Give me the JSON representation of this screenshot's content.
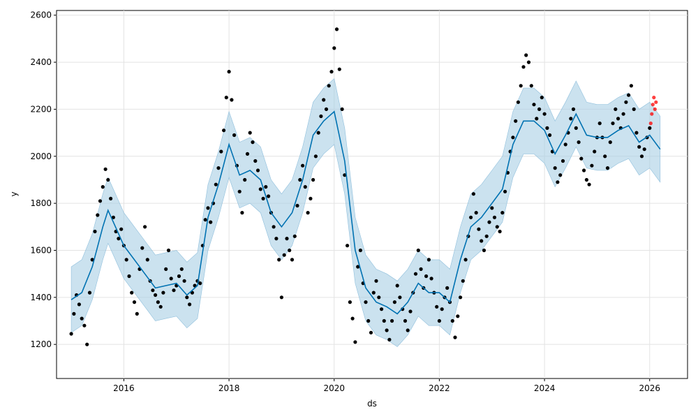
{
  "chart_data": {
    "type": "scatter",
    "xlabel": "ds",
    "ylabel": "y",
    "xlim": [
      2014.72,
      2026.72
    ],
    "ylim": [
      1055,
      2620
    ],
    "grid": true,
    "x_ticks": [
      2016,
      2018,
      2020,
      2022,
      2024,
      2026
    ],
    "y_ticks": [
      1200,
      1400,
      1600,
      1800,
      2000,
      2200,
      2400,
      2600
    ],
    "colors": {
      "observed": "#000000",
      "recent": "#ff0000",
      "forecast": "#0072b2",
      "band": "#a9cfe5"
    },
    "series": [
      {
        "role": "observed",
        "points": [
          [
            2015.0,
            1245
          ],
          [
            2015.05,
            1330
          ],
          [
            2015.1,
            1410
          ],
          [
            2015.15,
            1370
          ],
          [
            2015.2,
            1310
          ],
          [
            2015.25,
            1280
          ],
          [
            2015.3,
            1200
          ],
          [
            2015.35,
            1420
          ],
          [
            2015.4,
            1560
          ],
          [
            2015.45,
            1680
          ],
          [
            2015.5,
            1750
          ],
          [
            2015.55,
            1810
          ],
          [
            2015.6,
            1870
          ],
          [
            2015.65,
            1945
          ],
          [
            2015.7,
            1900
          ],
          [
            2015.75,
            1820
          ],
          [
            2015.8,
            1740
          ],
          [
            2015.85,
            1680
          ],
          [
            2015.9,
            1650
          ],
          [
            2015.95,
            1690
          ],
          [
            2016.0,
            1620
          ],
          [
            2016.05,
            1560
          ],
          [
            2016.1,
            1490
          ],
          [
            2016.15,
            1420
          ],
          [
            2016.2,
            1380
          ],
          [
            2016.25,
            1330
          ],
          [
            2016.3,
            1520
          ],
          [
            2016.35,
            1610
          ],
          [
            2016.4,
            1700
          ],
          [
            2016.45,
            1560
          ],
          [
            2016.5,
            1470
          ],
          [
            2016.55,
            1430
          ],
          [
            2016.6,
            1410
          ],
          [
            2016.65,
            1380
          ],
          [
            2016.7,
            1360
          ],
          [
            2016.75,
            1420
          ],
          [
            2016.8,
            1520
          ],
          [
            2016.85,
            1600
          ],
          [
            2016.9,
            1480
          ],
          [
            2016.95,
            1430
          ],
          [
            2017.0,
            1450
          ],
          [
            2017.05,
            1490
          ],
          [
            2017.1,
            1520
          ],
          [
            2017.15,
            1470
          ],
          [
            2017.2,
            1400
          ],
          [
            2017.25,
            1370
          ],
          [
            2017.3,
            1420
          ],
          [
            2017.35,
            1450
          ],
          [
            2017.4,
            1470
          ],
          [
            2017.45,
            1460
          ],
          [
            2017.5,
            1620
          ],
          [
            2017.55,
            1730
          ],
          [
            2017.6,
            1780
          ],
          [
            2017.65,
            1720
          ],
          [
            2017.7,
            1800
          ],
          [
            2017.75,
            1880
          ],
          [
            2017.8,
            1950
          ],
          [
            2017.85,
            2020
          ],
          [
            2017.9,
            2110
          ],
          [
            2017.95,
            2250
          ],
          [
            2018.0,
            2360
          ],
          [
            2018.05,
            2240
          ],
          [
            2018.1,
            2090
          ],
          [
            2018.15,
            1960
          ],
          [
            2018.2,
            1850
          ],
          [
            2018.25,
            1760
          ],
          [
            2018.3,
            1900
          ],
          [
            2018.35,
            2010
          ],
          [
            2018.4,
            2100
          ],
          [
            2018.45,
            2060
          ],
          [
            2018.5,
            1980
          ],
          [
            2018.55,
            1940
          ],
          [
            2018.6,
            1860
          ],
          [
            2018.65,
            1820
          ],
          [
            2018.7,
            1870
          ],
          [
            2018.75,
            1830
          ],
          [
            2018.8,
            1760
          ],
          [
            2018.85,
            1700
          ],
          [
            2018.9,
            1650
          ],
          [
            2018.95,
            1560
          ],
          [
            2019.0,
            1400
          ],
          [
            2019.05,
            1580
          ],
          [
            2019.1,
            1650
          ],
          [
            2019.15,
            1600
          ],
          [
            2019.2,
            1560
          ],
          [
            2019.25,
            1660
          ],
          [
            2019.3,
            1790
          ],
          [
            2019.35,
            1900
          ],
          [
            2019.4,
            1960
          ],
          [
            2019.45,
            1870
          ],
          [
            2019.5,
            1760
          ],
          [
            2019.55,
            1820
          ],
          [
            2019.6,
            1900
          ],
          [
            2019.65,
            2000
          ],
          [
            2019.7,
            2100
          ],
          [
            2019.75,
            2170
          ],
          [
            2019.8,
            2240
          ],
          [
            2019.85,
            2200
          ],
          [
            2019.9,
            2300
          ],
          [
            2019.95,
            2360
          ],
          [
            2020.0,
            2460
          ],
          [
            2020.05,
            2540
          ],
          [
            2020.1,
            2370
          ],
          [
            2020.15,
            2200
          ],
          [
            2020.2,
            1920
          ],
          [
            2020.25,
            1620
          ],
          [
            2020.3,
            1380
          ],
          [
            2020.35,
            1310
          ],
          [
            2020.4,
            1210
          ],
          [
            2020.45,
            1530
          ],
          [
            2020.5,
            1600
          ],
          [
            2020.55,
            1460
          ],
          [
            2020.6,
            1380
          ],
          [
            2020.65,
            1300
          ],
          [
            2020.7,
            1250
          ],
          [
            2020.75,
            1420
          ],
          [
            2020.8,
            1470
          ],
          [
            2020.85,
            1400
          ],
          [
            2020.9,
            1350
          ],
          [
            2020.95,
            1300
          ],
          [
            2021.0,
            1260
          ],
          [
            2021.05,
            1220
          ],
          [
            2021.1,
            1300
          ],
          [
            2021.15,
            1380
          ],
          [
            2021.2,
            1450
          ],
          [
            2021.25,
            1400
          ],
          [
            2021.3,
            1350
          ],
          [
            2021.35,
            1300
          ],
          [
            2021.4,
            1260
          ],
          [
            2021.45,
            1340
          ],
          [
            2021.5,
            1420
          ],
          [
            2021.55,
            1500
          ],
          [
            2021.6,
            1600
          ],
          [
            2021.65,
            1520
          ],
          [
            2021.7,
            1440
          ],
          [
            2021.75,
            1490
          ],
          [
            2021.8,
            1560
          ],
          [
            2021.85,
            1480
          ],
          [
            2021.9,
            1420
          ],
          [
            2021.95,
            1360
          ],
          [
            2022.0,
            1300
          ],
          [
            2022.05,
            1350
          ],
          [
            2022.1,
            1400
          ],
          [
            2022.15,
            1440
          ],
          [
            2022.2,
            1380
          ],
          [
            2022.25,
            1300
          ],
          [
            2022.3,
            1230
          ],
          [
            2022.35,
            1320
          ],
          [
            2022.4,
            1400
          ],
          [
            2022.45,
            1470
          ],
          [
            2022.5,
            1560
          ],
          [
            2022.55,
            1660
          ],
          [
            2022.6,
            1740
          ],
          [
            2022.65,
            1840
          ],
          [
            2022.7,
            1760
          ],
          [
            2022.75,
            1690
          ],
          [
            2022.8,
            1640
          ],
          [
            2022.85,
            1600
          ],
          [
            2022.9,
            1660
          ],
          [
            2022.95,
            1720
          ],
          [
            2023.0,
            1780
          ],
          [
            2023.05,
            1740
          ],
          [
            2023.1,
            1700
          ],
          [
            2023.15,
            1680
          ],
          [
            2023.2,
            1760
          ],
          [
            2023.25,
            1850
          ],
          [
            2023.3,
            1930
          ],
          [
            2023.35,
            2020
          ],
          [
            2023.4,
            2080
          ],
          [
            2023.45,
            2150
          ],
          [
            2023.5,
            2230
          ],
          [
            2023.55,
            2300
          ],
          [
            2023.6,
            2380
          ],
          [
            2023.65,
            2430
          ],
          [
            2023.7,
            2400
          ],
          [
            2023.75,
            2300
          ],
          [
            2023.8,
            2220
          ],
          [
            2023.85,
            2160
          ],
          [
            2023.9,
            2200
          ],
          [
            2023.95,
            2250
          ],
          [
            2024.0,
            2180
          ],
          [
            2024.05,
            2120
          ],
          [
            2024.1,
            2090
          ],
          [
            2024.15,
            2020
          ],
          [
            2024.2,
            1950
          ],
          [
            2024.25,
            1890
          ],
          [
            2024.3,
            1920
          ],
          [
            2024.35,
            1980
          ],
          [
            2024.4,
            2050
          ],
          [
            2024.45,
            2100
          ],
          [
            2024.5,
            2160
          ],
          [
            2024.55,
            2200
          ],
          [
            2024.6,
            2120
          ],
          [
            2024.65,
            2060
          ],
          [
            2024.7,
            1990
          ],
          [
            2024.75,
            1940
          ],
          [
            2024.8,
            1900
          ],
          [
            2024.85,
            1880
          ],
          [
            2024.9,
            1960
          ],
          [
            2024.95,
            2020
          ],
          [
            2025.0,
            2080
          ],
          [
            2025.05,
            2140
          ],
          [
            2025.1,
            2080
          ],
          [
            2025.15,
            2000
          ],
          [
            2025.2,
            1950
          ],
          [
            2025.25,
            2060
          ],
          [
            2025.3,
            2140
          ],
          [
            2025.35,
            2200
          ],
          [
            2025.4,
            2160
          ],
          [
            2025.45,
            2120
          ],
          [
            2025.5,
            2180
          ],
          [
            2025.55,
            2230
          ],
          [
            2025.6,
            2260
          ],
          [
            2025.65,
            2300
          ],
          [
            2025.7,
            2200
          ],
          [
            2025.75,
            2100
          ],
          [
            2025.8,
            2040
          ],
          [
            2025.85,
            2000
          ],
          [
            2025.9,
            2030
          ],
          [
            2025.95,
            2080
          ],
          [
            2026.0,
            2120
          ]
        ]
      },
      {
        "role": "recent",
        "points": [
          [
            2026.02,
            2140
          ],
          [
            2026.04,
            2180
          ],
          [
            2026.06,
            2220
          ],
          [
            2026.08,
            2250
          ],
          [
            2026.1,
            2200
          ],
          [
            2026.12,
            2230
          ]
        ]
      },
      {
        "role": "forecast",
        "points": [
          [
            2015.0,
            1390
          ],
          [
            2015.2,
            1420
          ],
          [
            2015.4,
            1530
          ],
          [
            2015.6,
            1700
          ],
          [
            2015.7,
            1770
          ],
          [
            2015.8,
            1720
          ],
          [
            2016.0,
            1620
          ],
          [
            2016.2,
            1560
          ],
          [
            2016.4,
            1500
          ],
          [
            2016.6,
            1440
          ],
          [
            2016.8,
            1450
          ],
          [
            2017.0,
            1460
          ],
          [
            2017.2,
            1410
          ],
          [
            2017.4,
            1450
          ],
          [
            2017.6,
            1740
          ],
          [
            2017.8,
            1880
          ],
          [
            2018.0,
            2050
          ],
          [
            2018.2,
            1920
          ],
          [
            2018.4,
            1940
          ],
          [
            2018.6,
            1900
          ],
          [
            2018.8,
            1760
          ],
          [
            2019.0,
            1700
          ],
          [
            2019.2,
            1760
          ],
          [
            2019.4,
            1900
          ],
          [
            2019.6,
            2090
          ],
          [
            2019.8,
            2150
          ],
          [
            2020.0,
            2190
          ],
          [
            2020.2,
            1980
          ],
          [
            2020.4,
            1600
          ],
          [
            2020.6,
            1440
          ],
          [
            2020.8,
            1380
          ],
          [
            2021.0,
            1360
          ],
          [
            2021.2,
            1330
          ],
          [
            2021.4,
            1380
          ],
          [
            2021.6,
            1460
          ],
          [
            2021.8,
            1420
          ],
          [
            2022.0,
            1420
          ],
          [
            2022.2,
            1380
          ],
          [
            2022.4,
            1560
          ],
          [
            2022.6,
            1700
          ],
          [
            2022.8,
            1740
          ],
          [
            2023.0,
            1800
          ],
          [
            2023.2,
            1860
          ],
          [
            2023.4,
            2050
          ],
          [
            2023.6,
            2150
          ],
          [
            2023.8,
            2150
          ],
          [
            2024.0,
            2110
          ],
          [
            2024.2,
            2010
          ],
          [
            2024.4,
            2090
          ],
          [
            2024.6,
            2180
          ],
          [
            2024.8,
            2090
          ],
          [
            2025.0,
            2080
          ],
          [
            2025.2,
            2080
          ],
          [
            2025.4,
            2110
          ],
          [
            2025.6,
            2130
          ],
          [
            2025.8,
            2060
          ],
          [
            2026.0,
            2090
          ],
          [
            2026.2,
            2030
          ]
        ]
      }
    ]
  }
}
